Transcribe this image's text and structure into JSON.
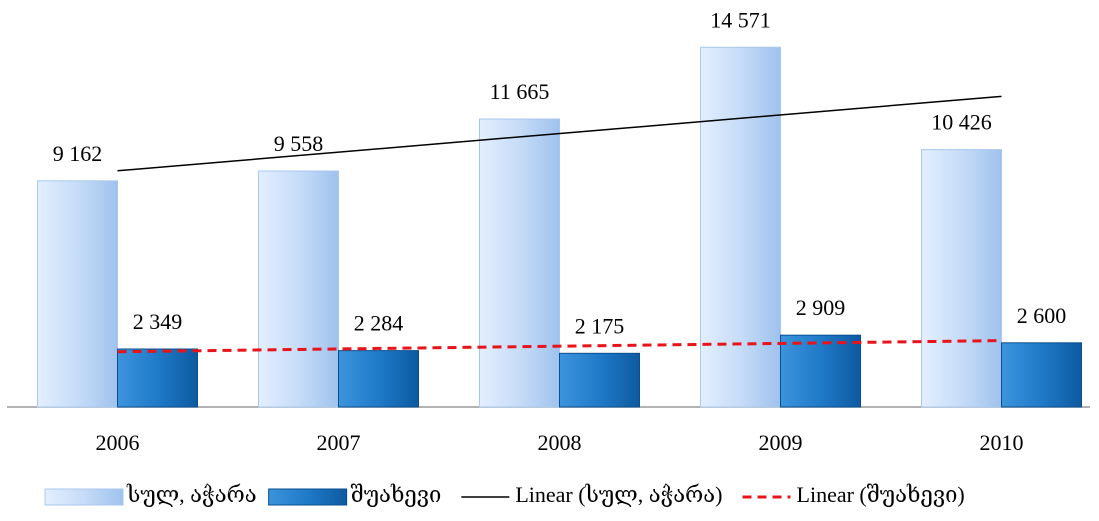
{
  "chart_data": {
    "type": "bar",
    "categories": [
      "2006",
      "2007",
      "2008",
      "2009",
      "2010"
    ],
    "series": [
      {
        "name": "სულ, აჭარა",
        "color": "#c6dcf7",
        "values": [
          9162,
          9558,
          11665,
          14571,
          10426
        ],
        "value_labels": [
          "9 162",
          "9 558",
          "11 665",
          "14 571",
          "10 426"
        ],
        "trendline": {
          "name": "Linear (სულ, აჭარა)",
          "color": "#000000",
          "style": "solid"
        }
      },
      {
        "name": "შუახევი",
        "color": "#1f7ac8",
        "values": [
          2349,
          2284,
          2175,
          2909,
          2600
        ],
        "value_labels": [
          "2 349",
          "2 284",
          "2 175",
          "2 909",
          "2 600"
        ],
        "trendline": {
          "name": "Linear (შუახევი)",
          "color": "#e8141b",
          "style": "dashed"
        }
      }
    ],
    "ylim": [
      0,
      16000
    ],
    "legend": "bottom"
  }
}
